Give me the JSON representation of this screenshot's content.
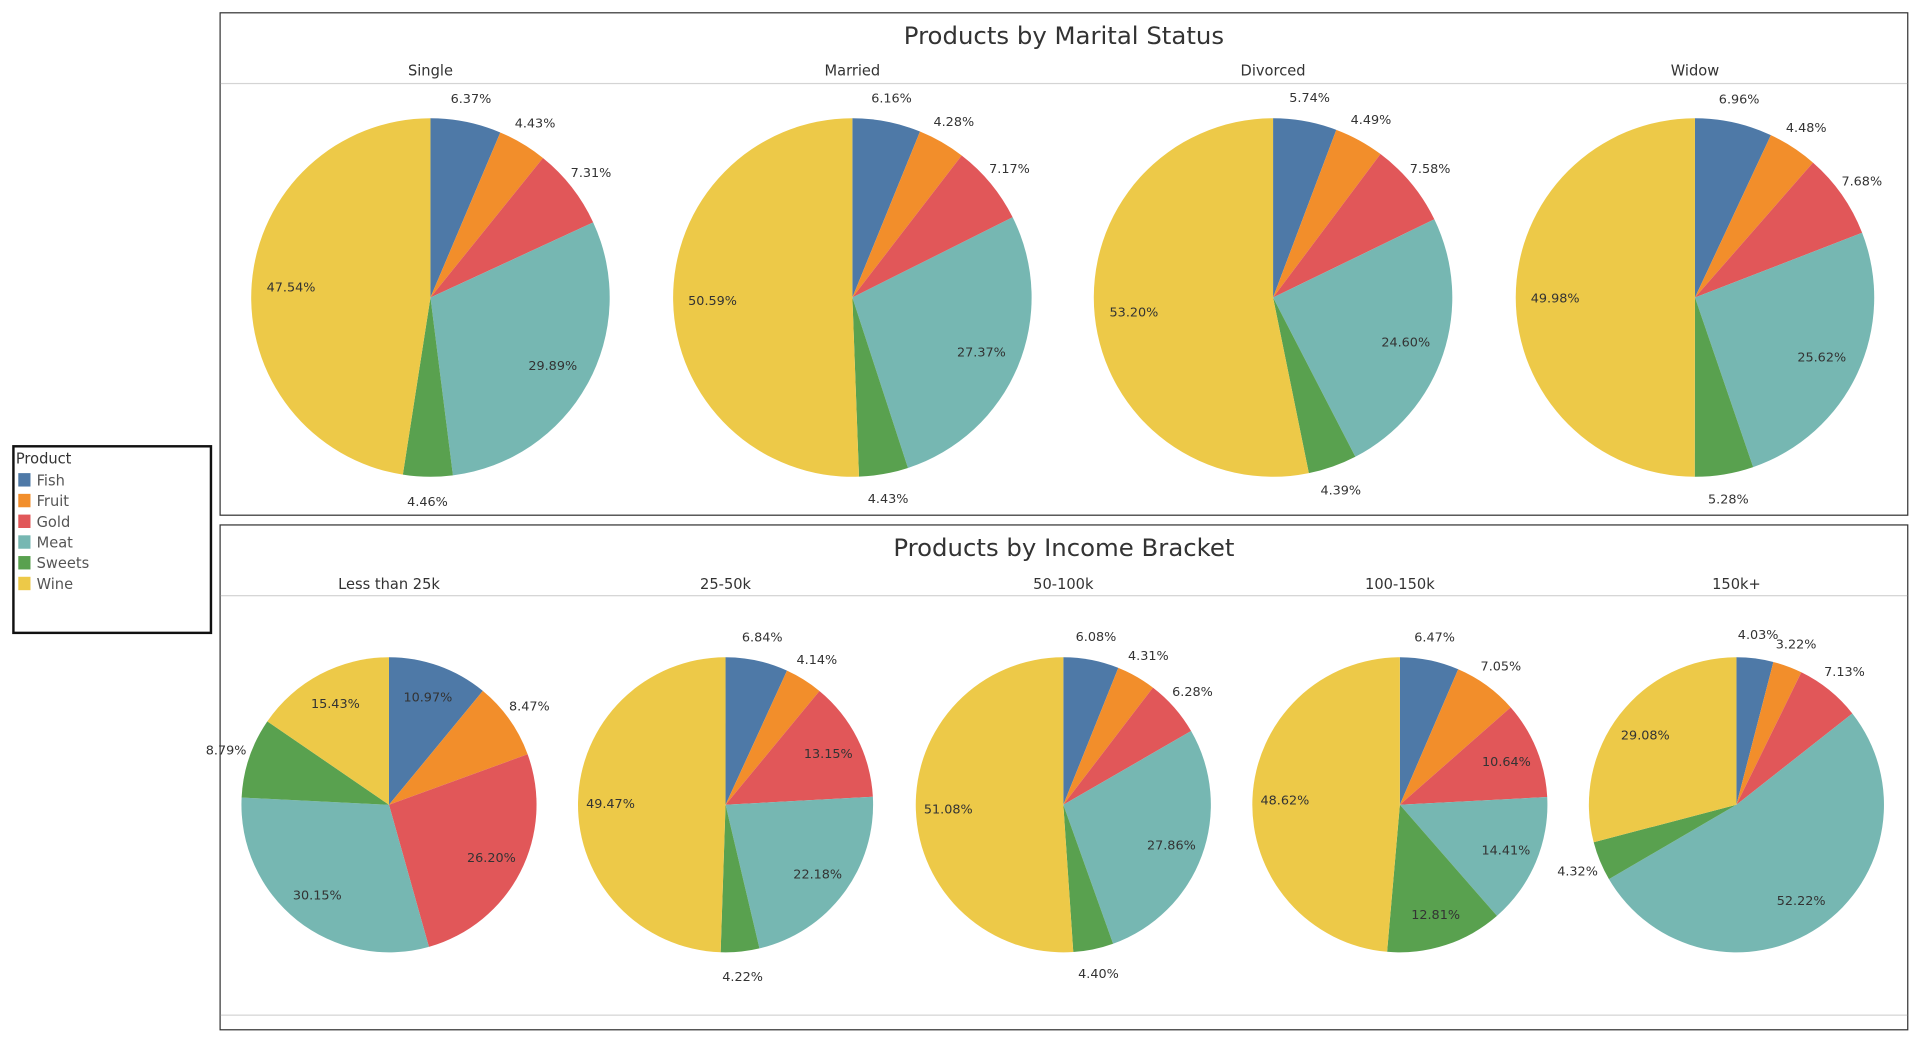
{
  "legend": {
    "title": "Product",
    "items": [
      {
        "label": "Fish",
        "color": "#4e79a7"
      },
      {
        "label": "Fruit",
        "color": "#f28e2b"
      },
      {
        "label": "Gold",
        "color": "#e15759"
      },
      {
        "label": "Meat",
        "color": "#76b7b2"
      },
      {
        "label": "Sweets",
        "color": "#59a14f"
      },
      {
        "label": "Wine",
        "color": "#edc948"
      }
    ]
  },
  "chart_data": [
    {
      "type": "pie",
      "title": "Products by Marital Status",
      "slice_labels": [
        "Fish",
        "Fruit",
        "Gold",
        "Meat",
        "Sweets",
        "Wine"
      ],
      "pies": [
        {
          "name": "Single",
          "values": [
            6.37,
            4.43,
            7.31,
            29.89,
            4.46,
            47.54
          ]
        },
        {
          "name": "Married",
          "values": [
            6.16,
            4.28,
            7.17,
            27.37,
            4.43,
            50.59
          ]
        },
        {
          "name": "Divorced",
          "values": [
            5.74,
            4.49,
            7.58,
            24.6,
            4.39,
            53.2
          ]
        },
        {
          "name": "Widow",
          "values": [
            6.96,
            4.48,
            7.68,
            25.62,
            5.28,
            49.98
          ]
        }
      ]
    },
    {
      "type": "pie",
      "title": "Products by Income Bracket",
      "slice_labels": [
        "Fish",
        "Fruit",
        "Gold",
        "Meat",
        "Sweets",
        "Wine"
      ],
      "pies": [
        {
          "name": "Less than 25k",
          "values": [
            10.97,
            8.47,
            26.2,
            30.15,
            8.79,
            15.43
          ]
        },
        {
          "name": "25-50k",
          "values": [
            6.84,
            4.14,
            13.15,
            22.18,
            4.22,
            49.47
          ]
        },
        {
          "name": "50-100k",
          "values": [
            6.08,
            4.31,
            6.28,
            27.86,
            4.4,
            51.08
          ]
        },
        {
          "name": "100-150k",
          "values": [
            6.47,
            7.05,
            10.64,
            14.41,
            12.81,
            48.62
          ]
        },
        {
          "name": "150k+",
          "values": [
            4.03,
            3.22,
            7.13,
            52.22,
            4.32,
            29.08
          ]
        }
      ]
    }
  ]
}
